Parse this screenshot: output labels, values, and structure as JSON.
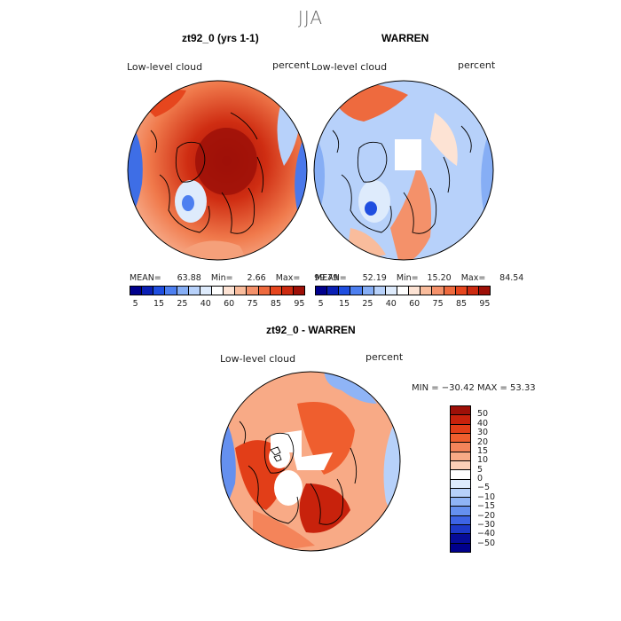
{
  "season": "JJA",
  "panels": [
    {
      "title": "zt92_0 (yrs 1-1)",
      "variable": "Low-level cloud",
      "units": "percent",
      "stats": {
        "mean": "63.88",
        "min": "2.66",
        "max": "99.79"
      }
    },
    {
      "title": "WARREN",
      "variable": "Low-level cloud",
      "units": "percent",
      "stats": {
        "mean": "52.19",
        "min": "15.20",
        "max": "84.54"
      }
    },
    {
      "title": "zt92_0 - WARREN",
      "variable": "Low-level cloud",
      "units": "percent",
      "stats_text": "MIN = −30.42 MAX =  53.33"
    }
  ],
  "stat_labels": {
    "mean": "MEAN=",
    "min": "Min=",
    "max": "Max="
  },
  "colorbar_abs": {
    "ticks": [
      "5",
      "15",
      "25",
      "40",
      "60",
      "75",
      "85",
      "95"
    ],
    "colors": [
      "#00008c",
      "#0a1fb4",
      "#1f4ee0",
      "#4d7ff0",
      "#86aef5",
      "#b7d1fa",
      "#deebfc",
      "#ffffff",
      "#fde3d4",
      "#f9bc9c",
      "#f4916a",
      "#ee6a3e",
      "#e6461e",
      "#cc2a10",
      "#9e1008"
    ]
  },
  "colorbar_diff": {
    "ticks": [
      "50",
      "40",
      "30",
      "20",
      "15",
      "10",
      "5",
      "0",
      "−5",
      "−10",
      "−15",
      "−20",
      "−30",
      "−40",
      "−50"
    ],
    "colors": [
      "#9e1008",
      "#c8220c",
      "#e23e18",
      "#ef5e2e",
      "#f4845a",
      "#f8aa86",
      "#fbcfb6",
      "#ffffff",
      "#deebfc",
      "#b7d1fa",
      "#8fb4f6",
      "#6590ef",
      "#3d64e4",
      "#1d39c8",
      "#060c98",
      "#00008c"
    ]
  }
}
